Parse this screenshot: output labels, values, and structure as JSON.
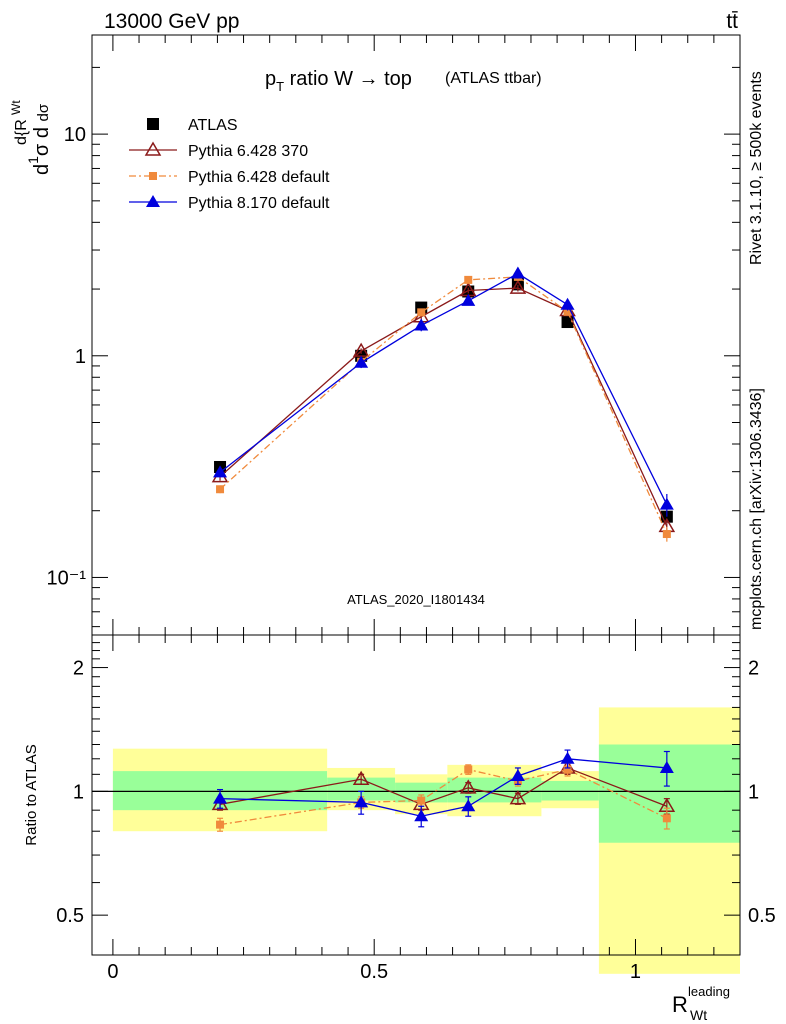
{
  "header": {
    "energy_label": "13000 GeV pp",
    "process_label": "tt̄",
    "rivet_label": "Rivet 3.1.10, ≥ 500k events",
    "source_label": "mcplots.cern.ch [arXiv:1306.3436]",
    "analysis_label": "ATLAS_2020_I1801434"
  },
  "chart_data": [
    {
      "type": "line",
      "panel": "main",
      "title": "p_T ratio W → top",
      "title_suffix": "(ATLAS ttbar)",
      "ylabel": "1/σ dσ/d{R_Wt^leading}",
      "y_scale": "log",
      "ylim": [
        0.055,
        28
      ],
      "xlim": [
        -0.04,
        1.2
      ],
      "y_tick_labels": [
        "10⁻¹",
        "1",
        "10"
      ],
      "legend_position": "top-left",
      "x": [
        0.205,
        0.475,
        0.59,
        0.68,
        0.775,
        0.87,
        1.06
      ],
      "series": [
        {
          "name": "ATLAS",
          "color": "#000000",
          "marker": "square",
          "line": false,
          "values": [
            0.315,
            1.0,
            1.65,
            1.95,
            2.1,
            1.42,
            0.188
          ],
          "ratio": [
            1.0,
            1.0,
            1.0,
            1.0,
            1.0,
            1.0,
            1.0
          ]
        },
        {
          "name": "Pythia 6.428 370",
          "color": "#8b1a1a",
          "marker": "open-triangle",
          "line": "solid",
          "values": [
            0.285,
            1.05,
            1.5,
            1.97,
            2.02,
            1.6,
            0.17
          ],
          "ratio": [
            0.93,
            1.07,
            0.93,
            1.02,
            0.96,
            1.14,
            0.92
          ]
        },
        {
          "name": "Pythia 6.428 default",
          "color": "#f08a3c",
          "marker": "filled-square",
          "line": "dashdot",
          "values": [
            0.25,
            0.94,
            1.57,
            2.2,
            2.27,
            1.58,
            0.157
          ],
          "ratio": [
            0.83,
            0.94,
            0.95,
            1.13,
            1.06,
            1.13,
            0.86
          ]
        },
        {
          "name": "Pythia 8.170 default",
          "color": "#0000dd",
          "marker": "filled-triangle",
          "line": "solid",
          "values": [
            0.298,
            0.93,
            1.37,
            1.77,
            2.35,
            1.7,
            0.213
          ],
          "ratio": [
            0.96,
            0.94,
            0.87,
            0.92,
            1.09,
            1.2,
            1.14
          ]
        }
      ],
      "errors": {
        "Pythia 6.428 370": [
          0.012,
          0.03,
          0.05,
          0.06,
          0.07,
          0.06,
          0.012
        ],
        "Pythia 6.428 default": [
          0.01,
          0.03,
          0.05,
          0.07,
          0.08,
          0.06,
          0.012
        ],
        "Pythia 8.170 default": [
          0.015,
          0.05,
          0.08,
          0.08,
          0.12,
          0.1,
          0.025
        ]
      }
    },
    {
      "type": "line",
      "panel": "ratio",
      "ylabel": "Ratio to ATLAS",
      "xlabel": "R_Wt^leading",
      "y_scale": "log",
      "ylim": [
        0.4,
        2.4
      ],
      "xlim": [
        -0.04,
        1.2
      ],
      "x_ticks": [
        0,
        0.5,
        1
      ],
      "x_tick_labels": [
        "0",
        "0.5",
        "1"
      ],
      "y_tick_labels": [
        "0.5",
        "1",
        "2"
      ],
      "uncertainty_bands": {
        "bins": [
          [
            0.0,
            0.41
          ],
          [
            0.41,
            0.54
          ],
          [
            0.54,
            0.64
          ],
          [
            0.64,
            0.82
          ],
          [
            0.82,
            0.93
          ],
          [
            0.93,
            1.2
          ]
        ],
        "green": [
          [
            0.9,
            1.12
          ],
          [
            0.95,
            1.08
          ],
          [
            0.94,
            1.05
          ],
          [
            0.94,
            1.08
          ],
          [
            0.95,
            1.06
          ],
          [
            0.75,
            1.3
          ]
        ],
        "yellow": [
          [
            0.8,
            1.27
          ],
          [
            0.9,
            1.14
          ],
          [
            0.88,
            1.1
          ],
          [
            0.87,
            1.16
          ],
          [
            0.91,
            1.12
          ],
          [
            0.36,
            1.6
          ]
        ],
        "green_color": "#99ff99",
        "yellow_color": "#ffff99"
      },
      "ratio_errors": {
        "Pythia 6.428 370": [
          0.03,
          0.03,
          0.03,
          0.03,
          0.03,
          0.04,
          0.04
        ],
        "Pythia 6.428 default": [
          0.03,
          0.03,
          0.03,
          0.03,
          0.03,
          0.04,
          0.05
        ],
        "Pythia 8.170 default": [
          0.05,
          0.06,
          0.05,
          0.05,
          0.05,
          0.06,
          0.11
        ]
      }
    }
  ]
}
